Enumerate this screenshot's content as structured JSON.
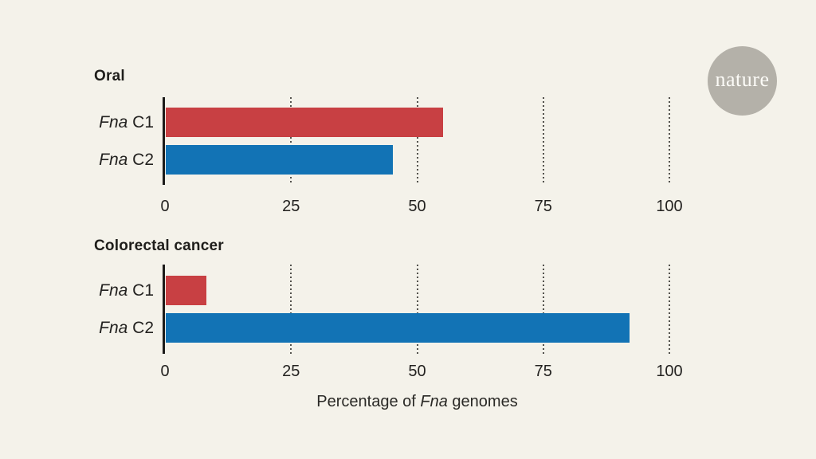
{
  "page": {
    "background_color": "#f4f2ea"
  },
  "logo": {
    "text": "nature",
    "circle_color": "#b4b1a9",
    "text_color": "#fcfbf7"
  },
  "chart_data": {
    "type": "bar",
    "orientation": "horizontal",
    "xlabel_parts": {
      "prefix": "Percentage of ",
      "italic": "Fna",
      "suffix": " genomes"
    },
    "xlim": [
      0,
      100
    ],
    "x_ticks": [
      0,
      25,
      50,
      75,
      100
    ],
    "gridlines": {
      "style": "dotted",
      "at": [
        25,
        50,
        75,
        100
      ],
      "color": "#53524d"
    },
    "bar_colors": {
      "fna_c1": "#c84043",
      "fna_c2": "#1273b5"
    },
    "charts": [
      {
        "title": "Oral",
        "bars": [
          {
            "label_italic": "Fna",
            "label_rest": " C1",
            "value": 55,
            "color": "#c84043"
          },
          {
            "label_italic": "Fna",
            "label_rest": " C2",
            "value": 45,
            "color": "#1273b5"
          }
        ]
      },
      {
        "title": "Colorectal cancer",
        "bars": [
          {
            "label_italic": "Fna",
            "label_rest": " C1",
            "value": 8,
            "color": "#c84043"
          },
          {
            "label_italic": "Fna",
            "label_rest": " C2",
            "value": 92,
            "color": "#1273b5"
          }
        ]
      }
    ]
  }
}
